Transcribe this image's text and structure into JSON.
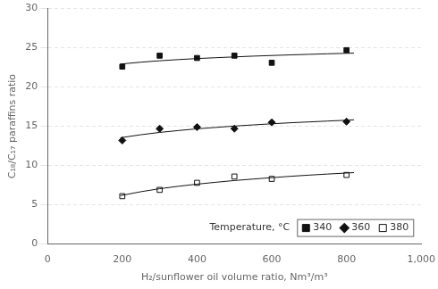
{
  "chart_data": {
    "type": "scatter",
    "xlabel": "H₂/sunflower oil volume ratio, Nm³/m³",
    "ylabel": "C₁₈/C₁₇ paraffins ratio",
    "xlim": [
      0,
      1000
    ],
    "ylim": [
      0,
      30
    ],
    "xticks": [
      0,
      200,
      400,
      600,
      800,
      1000
    ],
    "yticks": [
      0,
      5,
      10,
      15,
      20,
      25,
      30
    ],
    "grid": "y",
    "legend": "lower right",
    "legend_title": "Temperature, °C",
    "series": [
      {
        "name": "340",
        "color": "#111111",
        "marker": "square",
        "x": [
          200,
          300,
          400,
          500,
          600,
          800
        ],
        "values": [
          22.6,
          24.0,
          23.7,
          24.0,
          23.1,
          24.7
        ],
        "fit": {
          "x": [
            195,
            250,
            300,
            350,
            400,
            450,
            500,
            550,
            600,
            650,
            700,
            750,
            820
          ],
          "values": [
            22.93,
            23.17,
            23.35,
            23.5,
            23.63,
            23.74,
            23.84,
            23.94,
            24.02,
            24.1,
            24.17,
            24.24,
            24.32
          ]
        }
      },
      {
        "name": "360",
        "color": "#111111",
        "marker": "diamond",
        "x": [
          200,
          300,
          400,
          500,
          600,
          800
        ],
        "values": [
          13.2,
          14.7,
          14.9,
          14.7,
          15.5,
          15.6
        ],
        "fit": {
          "x": [
            195,
            250,
            300,
            350,
            400,
            450,
            500,
            550,
            600,
            650,
            700,
            750,
            820
          ],
          "values": [
            13.54,
            13.93,
            14.22,
            14.46,
            14.68,
            14.86,
            15.03,
            15.18,
            15.32,
            15.45,
            15.56,
            15.67,
            15.82
          ]
        }
      },
      {
        "name": "380",
        "color": "#111111",
        "marker": "open square",
        "x": [
          200,
          300,
          400,
          500,
          600,
          800
        ],
        "values": [
          6.1,
          6.9,
          7.8,
          8.6,
          8.3,
          8.8
        ],
        "fit": {
          "x": [
            195,
            250,
            300,
            350,
            400,
            450,
            500,
            550,
            600,
            650,
            700,
            750,
            820
          ],
          "values": [
            6.17,
            6.67,
            7.05,
            7.36,
            7.63,
            7.87,
            8.09,
            8.28,
            8.46,
            8.63,
            8.78,
            8.92,
            9.1
          ]
        }
      }
    ]
  }
}
